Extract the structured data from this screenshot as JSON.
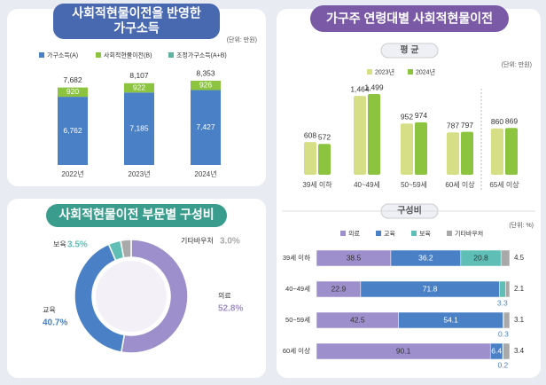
{
  "chart_data": [
    {
      "type": "stacked-bar",
      "title": [
        "사회적현물이전을 반영한",
        "가구소득"
      ],
      "unit": "(단위: 만원)",
      "categories": [
        "2022년",
        "2023년",
        "2024년"
      ],
      "series": [
        {
          "name": "가구소득(A)",
          "color": "#4a80c6",
          "values": [
            6762,
            7185,
            7427
          ],
          "value_labels": [
            "6,762",
            "7,185",
            "7,427"
          ]
        },
        {
          "name": "사회적현물이전(B)",
          "color": "#8cc43f",
          "values": [
            920,
            922,
            926
          ]
        },
        {
          "name": "조정가구소득(A+B)",
          "color": "#5db3a0",
          "values": [
            7682,
            8107,
            8353
          ],
          "value_labels": [
            "7,682",
            "8,107",
            "8,353"
          ]
        }
      ]
    },
    {
      "type": "donut",
      "title": "사회적현물이전 부문별 구성비",
      "categories": [
        "의료",
        "교육",
        "보육",
        "기타바우처"
      ],
      "values": [
        52.8,
        40.7,
        3.5,
        3.0
      ],
      "value_labels": [
        "52.8%",
        "40.7%",
        "3.5%",
        "3.0%"
      ],
      "colors": [
        "#9d8fcb",
        "#4a80c6",
        "#5fbfb7",
        "#a9a9a9"
      ]
    },
    {
      "type": "grouped-bar",
      "title": "가구주 연령대별 사회적현물이전",
      "subtitle": "평 균",
      "unit": "(단위: 만원)",
      "categories": [
        "39세 이하",
        "40~49세",
        "50~59세",
        "60세 이상",
        "65세 이상"
      ],
      "series": [
        {
          "name": "2023년",
          "color": "#d6df86",
          "values": [
            608,
            1464,
            952,
            787,
            860
          ],
          "value_labels": [
            "608",
            "1,464",
            "952",
            "787",
            "860"
          ]
        },
        {
          "name": "2024년",
          "color": "#8cc43f",
          "values": [
            572,
            1499,
            974,
            797,
            869
          ],
          "value_labels": [
            "572",
            "1,499",
            "974",
            "797",
            "869"
          ]
        }
      ]
    },
    {
      "type": "stacked-barh",
      "title": "구성비",
      "unit": "(단위: %)",
      "categories": [
        "39세 이하",
        "40~49세",
        "50~59세",
        "60세 이상"
      ],
      "series": [
        {
          "name": "의료",
          "color": "#9d8fcb",
          "values": [
            38.5,
            22.9,
            42.5,
            90.1
          ]
        },
        {
          "name": "교육",
          "color": "#4a80c6",
          "values": [
            36.2,
            71.8,
            54.1,
            6.4
          ]
        },
        {
          "name": "보육",
          "color": "#5fbfb7",
          "values": [
            20.8,
            3.3,
            0.3,
            0.2
          ]
        },
        {
          "name": "기타바우처",
          "color": "#a9a9a9",
          "values": [
            4.5,
            2.1,
            3.1,
            3.4
          ]
        }
      ]
    }
  ]
}
